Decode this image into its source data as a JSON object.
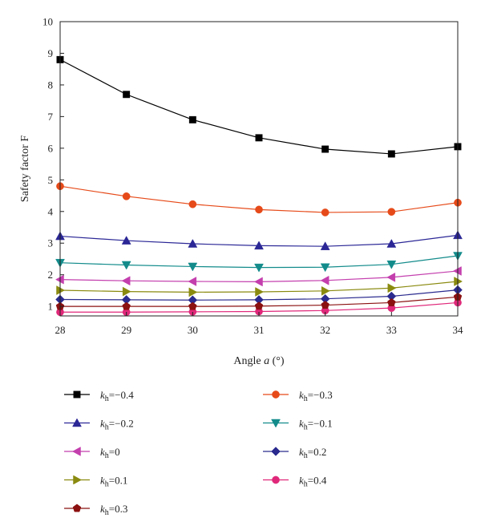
{
  "chart_data": {
    "type": "line",
    "title": "",
    "xlabel": {
      "prefix": "Angle ",
      "var": "a",
      "suffix": " (°)"
    },
    "ylabel": "Safety factor F",
    "x": [
      28,
      29,
      30,
      31,
      32,
      33,
      34
    ],
    "xlim": [
      28,
      34
    ],
    "ylim": [
      0.7,
      10
    ],
    "yticks": [
      1,
      2,
      3,
      4,
      5,
      6,
      7,
      8,
      9,
      10
    ],
    "grid": false,
    "legend_position": "bottom",
    "series": [
      {
        "name_sub": "h",
        "name_value": "=−0.4",
        "color": "#000000",
        "marker": "square",
        "values": [
          8.8,
          7.7,
          6.9,
          6.33,
          5.97,
          5.82,
          6.05
        ]
      },
      {
        "name_sub": "h",
        "name_value": "=−0.3",
        "color": "#e64a19",
        "marker": "circle",
        "values": [
          4.8,
          4.48,
          4.23,
          4.06,
          3.97,
          3.99,
          4.28
        ]
      },
      {
        "name_sub": "h",
        "name_value": "=−0.2",
        "color": "#2b2796",
        "marker": "triangle-up",
        "values": [
          3.22,
          3.08,
          2.98,
          2.92,
          2.9,
          2.98,
          3.25
        ]
      },
      {
        "name_sub": "h",
        "name_value": "=−0.1",
        "color": "#138b8b",
        "marker": "triangle-down",
        "values": [
          2.38,
          2.31,
          2.26,
          2.23,
          2.24,
          2.33,
          2.6
        ]
      },
      {
        "name_sub": "h",
        "name_value": "=0",
        "color": "#c43fae",
        "marker": "triangle-left",
        "values": [
          1.85,
          1.81,
          1.79,
          1.78,
          1.82,
          1.92,
          2.12
        ]
      },
      {
        "name_sub": "h",
        "name_value": "=0.2",
        "color": "#2a2a8f",
        "marker": "diamond",
        "values": [
          1.22,
          1.21,
          1.2,
          1.21,
          1.24,
          1.32,
          1.52
        ]
      },
      {
        "name_sub": "h",
        "name_value": "=0.1",
        "color": "#8a8a10",
        "marker": "triangle-right",
        "values": [
          1.51,
          1.47,
          1.45,
          1.46,
          1.49,
          1.58,
          1.79
        ]
      },
      {
        "name_sub": "h",
        "name_value": "=0.4",
        "color": "#e0287a",
        "marker": "circle",
        "values": [
          0.82,
          0.82,
          0.83,
          0.84,
          0.87,
          0.95,
          1.12
        ]
      },
      {
        "name_sub": "h",
        "name_value": "=0.3",
        "color": "#8b1010",
        "marker": "pentagon",
        "values": [
          1.0,
          1.0,
          1.0,
          1.01,
          1.04,
          1.12,
          1.3
        ]
      }
    ]
  }
}
